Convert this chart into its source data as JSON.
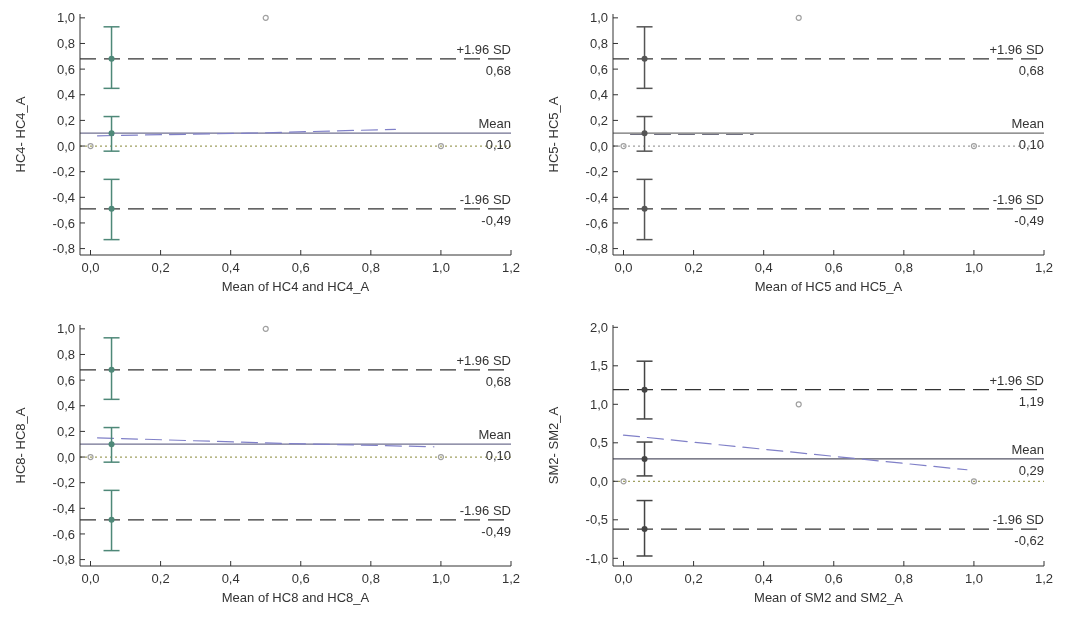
{
  "chart_data": [
    {
      "type": "scatter",
      "xlabel": "Mean of HC4 and HC4_A",
      "ylabel": "HC4- HC4_A",
      "xlim": [
        -0.03,
        1.2
      ],
      "ylim": [
        -0.85,
        1.03
      ],
      "xticks": [
        {
          "value": 0,
          "label": "0,0"
        },
        {
          "value": 0.2,
          "label": "0,2"
        },
        {
          "value": 0.4,
          "label": "0,4"
        },
        {
          "value": 0.6,
          "label": "0,6"
        },
        {
          "value": 0.8,
          "label": "0,8"
        },
        {
          "value": 1,
          "label": "1,0"
        },
        {
          "value": 1.2,
          "label": "1,2"
        }
      ],
      "yticks": [
        {
          "value": -0.8,
          "label": "-0,8"
        },
        {
          "value": -0.6,
          "label": "-0,6"
        },
        {
          "value": -0.4,
          "label": "-0,4"
        },
        {
          "value": -0.2,
          "label": "-0,2"
        },
        {
          "value": 0,
          "label": "0,0"
        },
        {
          "value": 0.2,
          "label": "0,2"
        },
        {
          "value": 0.4,
          "label": "0,4"
        },
        {
          "value": 0.6,
          "label": "0,6"
        },
        {
          "value": 0.8,
          "label": "0,8"
        },
        {
          "value": 1,
          "label": "1,0"
        }
      ],
      "series": [
        {
          "type": "scatter",
          "marker": "circle",
          "color": "#a0a0a0",
          "x": [
            0,
            0.5,
            1
          ],
          "values": [
            0,
            1,
            0
          ]
        },
        {
          "type": "line",
          "line_style": "dashed",
          "color": "#8080c8",
          "x": [
            0.02,
            0.45,
            0.87
          ],
          "values": [
            0.08,
            0.1,
            0.13
          ]
        },
        {
          "type": "scatter",
          "marker": "circle",
          "color": "#4e8878",
          "x": [
            0.06,
            0.06,
            0.06
          ],
          "values": [
            0.68,
            0.1,
            -0.49
          ],
          "errors": [
            [
              0.45,
              0.93
            ],
            [
              -0.04,
              0.23
            ],
            [
              -0.73,
              -0.26
            ]
          ]
        }
      ],
      "ref_lines": [
        {
          "axis": "y",
          "value": 0.68,
          "label": "+1.96 SD",
          "color": "#333333",
          "line_style": "dashed"
        },
        {
          "axis": "y",
          "value": 0.1,
          "label": "Mean",
          "color": "#707090",
          "line_style": "solid"
        },
        {
          "axis": "y",
          "value": 0,
          "color": "#a0a060",
          "line_style": "dotted"
        },
        {
          "axis": "y",
          "value": -0.49,
          "label": "-1.96 SD",
          "color": "#333333",
          "line_style": "dashed"
        }
      ],
      "annotations": [
        {
          "text": "0,68",
          "y": 0.68
        },
        {
          "text": "0,10",
          "y": 0.1
        },
        {
          "text": "-0,49",
          "y": -0.49
        }
      ]
    },
    {
      "type": "scatter",
      "xlabel": "Mean of HC5 and HC5_A",
      "ylabel": "HC5- HC5_A",
      "xlim": [
        -0.03,
        1.2
      ],
      "ylim": [
        -0.85,
        1.03
      ],
      "xticks": [
        {
          "value": 0,
          "label": "0,0"
        },
        {
          "value": 0.2,
          "label": "0,2"
        },
        {
          "value": 0.4,
          "label": "0,4"
        },
        {
          "value": 0.6,
          "label": "0,6"
        },
        {
          "value": 0.8,
          "label": "0,8"
        },
        {
          "value": 1,
          "label": "1,0"
        },
        {
          "value": 1.2,
          "label": "1,2"
        }
      ],
      "yticks": [
        {
          "value": -0.8,
          "label": "-0,8"
        },
        {
          "value": -0.6,
          "label": "-0,6"
        },
        {
          "value": -0.4,
          "label": "-0,4"
        },
        {
          "value": -0.2,
          "label": "-0,2"
        },
        {
          "value": 0,
          "label": "0,0"
        },
        {
          "value": 0.2,
          "label": "0,2"
        },
        {
          "value": 0.4,
          "label": "0,4"
        },
        {
          "value": 0.6,
          "label": "0,6"
        },
        {
          "value": 0.8,
          "label": "0,8"
        },
        {
          "value": 1,
          "label": "1,0"
        }
      ],
      "series": [
        {
          "type": "scatter",
          "marker": "circle",
          "color": "#a0a0a0",
          "x": [
            0,
            0.5,
            1
          ],
          "values": [
            0,
            1,
            0
          ]
        },
        {
          "type": "line",
          "line_style": "dashed",
          "color": "#707080",
          "x": [
            0.02,
            0.37
          ],
          "values": [
            0.09,
            0.09
          ]
        },
        {
          "type": "scatter",
          "marker": "circle",
          "color": "#555555",
          "x": [
            0.06,
            0.06,
            0.06
          ],
          "values": [
            0.68,
            0.1,
            -0.49
          ],
          "errors": [
            [
              0.45,
              0.93
            ],
            [
              -0.04,
              0.23
            ],
            [
              -0.73,
              -0.26
            ]
          ]
        }
      ],
      "ref_lines": [
        {
          "axis": "y",
          "value": 0.68,
          "label": "+1.96 SD",
          "color": "#333333",
          "line_style": "dashed"
        },
        {
          "axis": "y",
          "value": 0.1,
          "label": "Mean",
          "color": "#707070",
          "line_style": "solid"
        },
        {
          "axis": "y",
          "value": 0,
          "color": "#a0a0a0",
          "line_style": "dotted"
        },
        {
          "axis": "y",
          "value": -0.49,
          "label": "-1.96 SD",
          "color": "#333333",
          "line_style": "dashed"
        }
      ],
      "annotations": [
        {
          "text": "0,68",
          "y": 0.68
        },
        {
          "text": "0,10",
          "y": 0.1
        },
        {
          "text": "-0,49",
          "y": -0.49
        }
      ]
    },
    {
      "type": "scatter",
      "xlabel": "Mean of HC8 and HC8_A",
      "ylabel": "HC8- HC8_A",
      "xlim": [
        -0.03,
        1.2
      ],
      "ylim": [
        -0.85,
        1.03
      ],
      "xticks": [
        {
          "value": 0,
          "label": "0,0"
        },
        {
          "value": 0.2,
          "label": "0,2"
        },
        {
          "value": 0.4,
          "label": "0,4"
        },
        {
          "value": 0.6,
          "label": "0,6"
        },
        {
          "value": 0.8,
          "label": "0,8"
        },
        {
          "value": 1,
          "label": "1,0"
        },
        {
          "value": 1.2,
          "label": "1,2"
        }
      ],
      "yticks": [
        {
          "value": -0.8,
          "label": "-0,8"
        },
        {
          "value": -0.6,
          "label": "-0,6"
        },
        {
          "value": -0.4,
          "label": "-0,4"
        },
        {
          "value": -0.2,
          "label": "-0,2"
        },
        {
          "value": 0,
          "label": "0,0"
        },
        {
          "value": 0.2,
          "label": "0,2"
        },
        {
          "value": 0.4,
          "label": "0,4"
        },
        {
          "value": 0.6,
          "label": "0,6"
        },
        {
          "value": 0.8,
          "label": "0,8"
        },
        {
          "value": 1,
          "label": "1,0"
        }
      ],
      "series": [
        {
          "type": "scatter",
          "marker": "circle",
          "color": "#a0a0a0",
          "x": [
            0,
            0.5,
            1
          ],
          "values": [
            0,
            1,
            0
          ]
        },
        {
          "type": "line",
          "line_style": "dashed",
          "color": "#8080c8",
          "x": [
            0.02,
            0.5,
            0.98
          ],
          "values": [
            0.15,
            0.11,
            0.08
          ]
        },
        {
          "type": "scatter",
          "marker": "circle",
          "color": "#4e8878",
          "x": [
            0.06,
            0.06,
            0.06
          ],
          "values": [
            0.68,
            0.1,
            -0.49
          ],
          "errors": [
            [
              0.45,
              0.93
            ],
            [
              -0.04,
              0.23
            ],
            [
              -0.73,
              -0.26
            ]
          ]
        }
      ],
      "ref_lines": [
        {
          "axis": "y",
          "value": 0.68,
          "label": "+1.96 SD",
          "color": "#333333",
          "line_style": "dashed"
        },
        {
          "axis": "y",
          "value": 0.1,
          "label": "Mean",
          "color": "#707090",
          "line_style": "solid"
        },
        {
          "axis": "y",
          "value": 0,
          "color": "#a0a060",
          "line_style": "dotted"
        },
        {
          "axis": "y",
          "value": -0.49,
          "label": "-1.96 SD",
          "color": "#333333",
          "line_style": "dashed"
        }
      ],
      "annotations": [
        {
          "text": "0,68",
          "y": 0.68
        },
        {
          "text": "0,10",
          "y": 0.1
        },
        {
          "text": "-0,49",
          "y": -0.49
        }
      ]
    },
    {
      "type": "scatter",
      "xlabel": "Mean of SM2 and SM2_A",
      "ylabel": "SM2- SM2_A",
      "xlim": [
        -0.03,
        1.2
      ],
      "ylim": [
        -1.1,
        2.03
      ],
      "xticks": [
        {
          "value": 0,
          "label": "0,0"
        },
        {
          "value": 0.2,
          "label": "0,2"
        },
        {
          "value": 0.4,
          "label": "0,4"
        },
        {
          "value": 0.6,
          "label": "0,6"
        },
        {
          "value": 0.8,
          "label": "0,8"
        },
        {
          "value": 1,
          "label": "1,0"
        },
        {
          "value": 1.2,
          "label": "1,2"
        }
      ],
      "yticks": [
        {
          "value": -1,
          "label": "-1,0"
        },
        {
          "value": -0.5,
          "label": "-0,5"
        },
        {
          "value": 0,
          "label": "0,0"
        },
        {
          "value": 0.5,
          "label": "0,5"
        },
        {
          "value": 1,
          "label": "1,0"
        },
        {
          "value": 1.5,
          "label": "1,5"
        },
        {
          "value": 2,
          "label": "2,0"
        }
      ],
      "series": [
        {
          "type": "scatter",
          "marker": "circle",
          "color": "#a0a0a0",
          "x": [
            0,
            0.5,
            1
          ],
          "values": [
            0,
            1,
            0
          ]
        },
        {
          "type": "line",
          "line_style": "dashed",
          "color": "#8080c8",
          "x": [
            0,
            0.98
          ],
          "values": [
            0.6,
            0.15
          ]
        },
        {
          "type": "scatter",
          "marker": "circle",
          "color": "#444444",
          "x": [
            0.06,
            0.06,
            0.06
          ],
          "values": [
            1.19,
            0.29,
            -0.62
          ],
          "errors": [
            [
              0.81,
              1.56
            ],
            [
              0.07,
              0.51
            ],
            [
              -0.97,
              -0.25
            ]
          ]
        }
      ],
      "ref_lines": [
        {
          "axis": "y",
          "value": 1.19,
          "label": "+1.96 SD",
          "color": "#333333",
          "line_style": "dashed"
        },
        {
          "axis": "y",
          "value": 0.29,
          "label": "Mean",
          "color": "#555566",
          "line_style": "solid"
        },
        {
          "axis": "y",
          "value": 0,
          "color": "#a0a060",
          "line_style": "dotted"
        },
        {
          "axis": "y",
          "value": -0.62,
          "label": "-1.96 SD",
          "color": "#333333",
          "line_style": "dashed"
        }
      ],
      "annotations": [
        {
          "text": "1,19",
          "y": 1.19
        },
        {
          "text": "0,29",
          "y": 0.29
        },
        {
          "text": "-0,62",
          "y": -0.62
        }
      ]
    }
  ]
}
